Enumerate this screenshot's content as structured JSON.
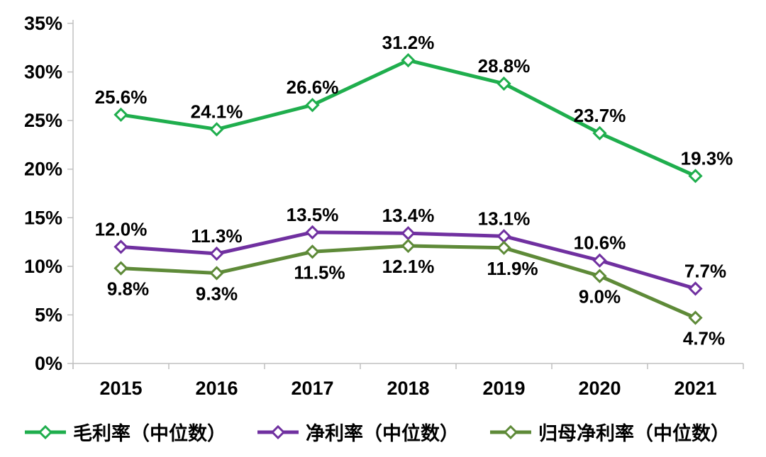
{
  "chart_data": {
    "type": "line",
    "title": "",
    "xlabel": "",
    "ylabel": "",
    "x": [
      "2015",
      "2016",
      "2017",
      "2018",
      "2019",
      "2020",
      "2021"
    ],
    "series": [
      {
        "name": "毛利率（中位数）",
        "color": "#1FAE4D",
        "values": [
          25.6,
          24.1,
          26.6,
          31.2,
          28.8,
          23.7,
          19.3
        ],
        "label_position": "above",
        "label_dx": [
          0,
          0,
          0,
          0,
          0,
          0,
          16
        ]
      },
      {
        "name": "净利率（中位数）",
        "color": "#7030A0",
        "values": [
          12.0,
          11.3,
          13.5,
          13.4,
          13.1,
          10.6,
          7.7
        ],
        "label_position": "above",
        "label_dx": [
          0,
          0,
          0,
          0,
          0,
          0,
          14
        ]
      },
      {
        "name": "归母净利率（中位数）",
        "color": "#5E8A38",
        "values": [
          9.8,
          9.3,
          11.5,
          12.1,
          11.9,
          9.0,
          4.7
        ],
        "label_position": "below",
        "label_dx": [
          10,
          0,
          10,
          0,
          12,
          0,
          12
        ]
      }
    ],
    "ylim": [
      0,
      35
    ],
    "y_ticks": [
      0,
      5,
      10,
      15,
      20,
      25,
      30,
      35
    ],
    "y_tick_labels": [
      "0%",
      "5%",
      "10%",
      "15%",
      "20%",
      "25%",
      "30%",
      "35%"
    ],
    "data_label_format": "one-decimal-percent",
    "marker": "open-diamond",
    "grid": false,
    "legend_position": "bottom",
    "axis_color": "#C0C0C0",
    "text_color": "#000000",
    "background_color": "#FFFFFF"
  }
}
